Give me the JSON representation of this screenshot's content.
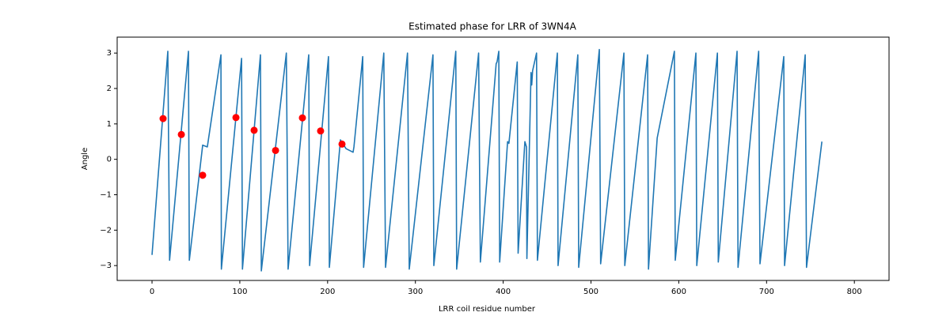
{
  "chart_data": {
    "type": "line",
    "title": "Estimated phase for LRR of 3WN4A",
    "x_label": "LRR coil residue number",
    "y_label": "Angle",
    "xlim": [
      -39.7,
      839.5
    ],
    "ylim": [
      -3.42,
      3.45
    ],
    "xticks": [
      0,
      100,
      200,
      300,
      400,
      500,
      600,
      700,
      800
    ],
    "yticks": [
      {
        "value": -3,
        "label": "−3"
      },
      {
        "value": -2,
        "label": "−2"
      },
      {
        "value": -1,
        "label": "−1"
      },
      0,
      1,
      2,
      3
    ],
    "series": [
      {
        "kind": "line",
        "color": "#1f77b4",
        "x": [
          0,
          18,
          20,
          41.5,
          42.5,
          57.7,
          63,
          78.5,
          79,
          102,
          103,
          123.5,
          124.5,
          153,
          155,
          178.5,
          179.5,
          201,
          202,
          214.6,
          221,
          229,
          230,
          240,
          241,
          264,
          266,
          291,
          293,
          320,
          321,
          346,
          347,
          372,
          374,
          392,
          393,
          395,
          396,
          405,
          406.5,
          416,
          417,
          424.7,
          426.5,
          427,
          431.7,
          432.5,
          433.5,
          438,
          439,
          461.7,
          462.5,
          485,
          486,
          509.5,
          511,
          537.5,
          538.5,
          564.5,
          565.5,
          575.4,
          595,
          596,
          619.5,
          620.5,
          644,
          645,
          666.4,
          667.5,
          691,
          692.5,
          719.6,
          720.5,
          744,
          745.5,
          763
        ],
        "values": [
          -2.7,
          3.05,
          -2.85,
          3.05,
          -2.85,
          0.4,
          0.35,
          2.95,
          -3.1,
          2.85,
          -3.1,
          2.95,
          -3.15,
          3.0,
          -3.1,
          2.95,
          -3.0,
          2.9,
          -3.05,
          0.55,
          0.3,
          0.2,
          0.35,
          2.9,
          -3.05,
          3.0,
          -3.05,
          3.0,
          -3.1,
          2.95,
          -3.0,
          3.05,
          -3.1,
          3.0,
          -2.9,
          2.7,
          2.75,
          3.05,
          -2.9,
          0.5,
          0.45,
          2.75,
          -2.65,
          0.5,
          0.35,
          -2.8,
          2.45,
          2.1,
          2.5,
          3.0,
          -2.85,
          3.0,
          -3.0,
          2.95,
          -3.05,
          3.1,
          -2.95,
          3.0,
          -3.0,
          2.95,
          -3.1,
          0.6,
          3.05,
          -2.85,
          3.0,
          -3.0,
          3.0,
          -2.9,
          3.05,
          -3.05,
          3.05,
          -2.95,
          2.9,
          -3.0,
          2.95,
          -3.05,
          0.5
        ]
      },
      {
        "kind": "scatter",
        "color": "#ff0000",
        "x": [
          12.6,
          33.4,
          57.7,
          95.6,
          116.3,
          140.7,
          171.3,
          192,
          216.4
        ],
        "values": [
          1.15,
          0.7,
          -0.45,
          1.18,
          0.82,
          0.25,
          1.17,
          0.8,
          0.43
        ]
      }
    ]
  }
}
